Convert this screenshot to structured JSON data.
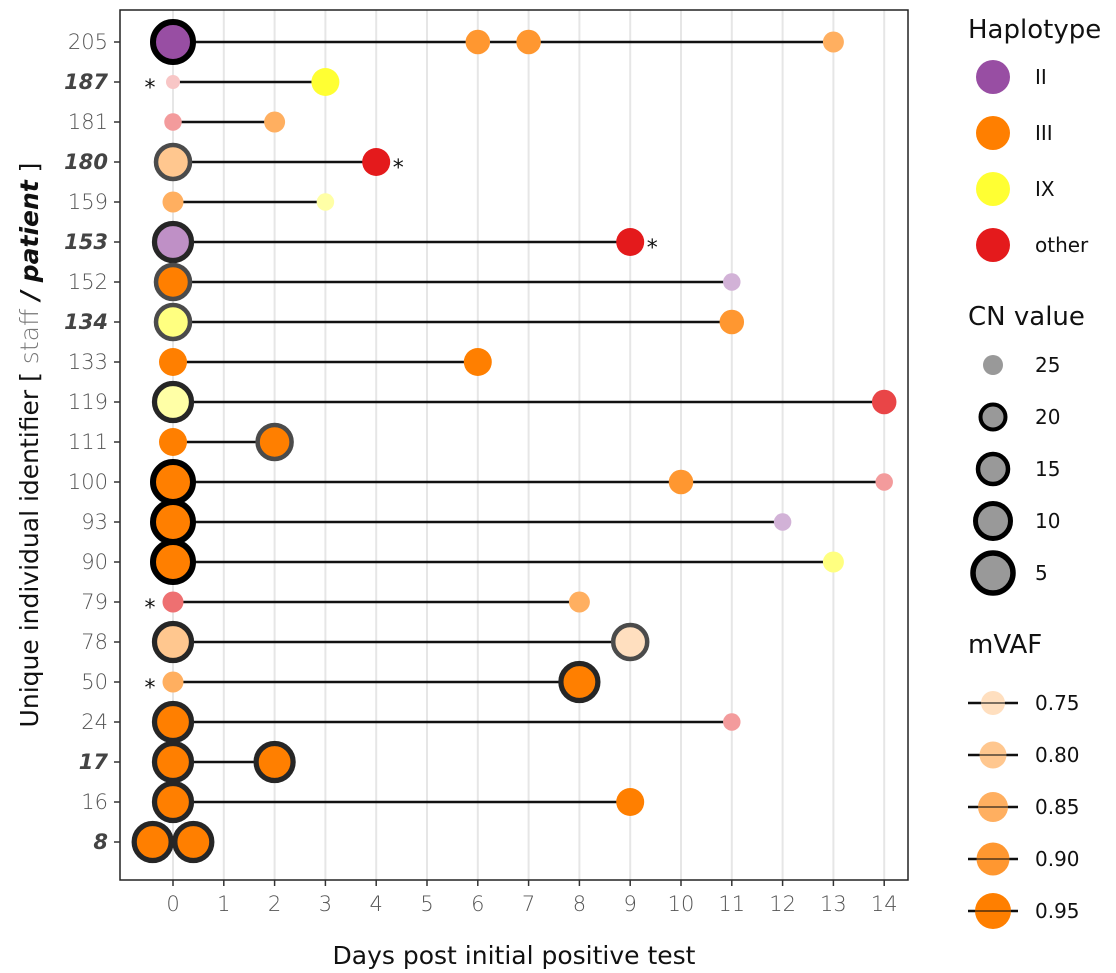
{
  "chart_data": {
    "type": "scatter",
    "xlabel": "Days post initial positive test",
    "ylabel_parts": {
      "prefix": "Unique individual identifier [ ",
      "staff": "staff",
      "slash": " / ",
      "patient": "patient",
      "suffix": " ]"
    },
    "xlim": [
      -0.8,
      14.3
    ],
    "x_ticks": [
      0,
      1,
      2,
      3,
      4,
      5,
      6,
      7,
      8,
      9,
      10,
      11,
      12,
      13,
      14
    ],
    "grid": true,
    "legend_position": "right",
    "haplotype_colors": {
      "II": "#984ea3",
      "III": "#ff7f00",
      "IX": "#ffff33",
      "other": "#e41a1c"
    },
    "individuals": [
      {
        "id": "205",
        "patient": false,
        "star": "",
        "range": [
          0,
          13
        ],
        "points": [
          {
            "x": 0,
            "hap": "II",
            "cn": 5,
            "mvaf": 0.95
          },
          {
            "x": 6,
            "hap": "III",
            "mvaf": 0.9
          },
          {
            "x": 7,
            "hap": "III",
            "mvaf": 0.9
          },
          {
            "x": 13,
            "hap": "III",
            "mvaf": 0.85
          }
        ]
      },
      {
        "id": "187",
        "patient": true,
        "star": "left",
        "range": [
          0,
          3
        ],
        "points": [
          {
            "x": 0,
            "hap": "other",
            "mvaf": 0.75
          },
          {
            "x": 3,
            "hap": "IX",
            "mvaf": 0.95
          }
        ]
      },
      {
        "id": "181",
        "patient": false,
        "star": "",
        "range": [
          0,
          2
        ],
        "points": [
          {
            "x": 0,
            "hap": "other",
            "mvaf": 0.8
          },
          {
            "x": 2,
            "hap": "III",
            "mvaf": 0.85
          }
        ]
      },
      {
        "id": "180",
        "patient": true,
        "star": "right",
        "range": [
          0,
          4
        ],
        "points": [
          {
            "x": 0,
            "hap": "III",
            "cn": 15,
            "mvaf": 0.8
          },
          {
            "x": 4,
            "hap": "other",
            "mvaf": 0.95
          }
        ]
      },
      {
        "id": "159",
        "patient": false,
        "star": "",
        "range": [
          0,
          3
        ],
        "points": [
          {
            "x": 0,
            "hap": "III",
            "mvaf": 0.85
          },
          {
            "x": 3,
            "hap": "IX",
            "mvaf": 0.8
          }
        ]
      },
      {
        "id": "153",
        "patient": true,
        "star": "right",
        "range": [
          0,
          9
        ],
        "points": [
          {
            "x": 0,
            "hap": "II",
            "cn": 10,
            "mvaf": 0.85
          },
          {
            "x": 9,
            "hap": "other",
            "mvaf": 0.95
          }
        ]
      },
      {
        "id": "152",
        "patient": false,
        "star": "",
        "range": [
          0,
          11
        ],
        "points": [
          {
            "x": 0,
            "hap": "III",
            "cn": 15,
            "mvaf": 0.95
          },
          {
            "x": 11,
            "hap": "II",
            "mvaf": 0.8
          }
        ]
      },
      {
        "id": "134",
        "patient": true,
        "star": "",
        "range": [
          0,
          11
        ],
        "points": [
          {
            "x": 0,
            "hap": "IX",
            "cn": 15,
            "mvaf": 0.85
          },
          {
            "x": 11,
            "hap": "III",
            "mvaf": 0.9
          }
        ]
      },
      {
        "id": "133",
        "patient": false,
        "star": "",
        "range": [
          0,
          6
        ],
        "points": [
          {
            "x": 0,
            "hap": "III",
            "mvaf": 0.95
          },
          {
            "x": 6,
            "hap": "III",
            "mvaf": 0.95
          }
        ]
      },
      {
        "id": "119",
        "patient": false,
        "star": "",
        "range": [
          0,
          14
        ],
        "points": [
          {
            "x": 0,
            "hap": "IX",
            "cn": 10,
            "mvaf": 0.8
          },
          {
            "x": 14,
            "hap": "other",
            "mvaf": 0.9
          }
        ]
      },
      {
        "id": "111",
        "patient": false,
        "star": "",
        "range": [
          0,
          2
        ],
        "points": [
          {
            "x": 0,
            "hap": "III",
            "mvaf": 0.95
          },
          {
            "x": 2,
            "hap": "III",
            "cn": 15,
            "mvaf": 0.95
          }
        ]
      },
      {
        "id": "100",
        "patient": false,
        "star": "",
        "range": [
          0,
          14
        ],
        "points": [
          {
            "x": 0,
            "hap": "III",
            "cn": 5,
            "mvaf": 0.95
          },
          {
            "x": 10,
            "hap": "III",
            "mvaf": 0.9
          },
          {
            "x": 14,
            "hap": "other",
            "mvaf": 0.8
          }
        ]
      },
      {
        "id": "93",
        "patient": false,
        "star": "",
        "range": [
          0,
          12
        ],
        "points": [
          {
            "x": 0,
            "hap": "III",
            "cn": 5,
            "mvaf": 0.95
          },
          {
            "x": 12,
            "hap": "II",
            "mvaf": 0.8
          }
        ]
      },
      {
        "id": "90",
        "patient": false,
        "star": "",
        "range": [
          0,
          13
        ],
        "points": [
          {
            "x": 0,
            "hap": "III",
            "cn": 5,
            "mvaf": 0.95
          },
          {
            "x": 13,
            "hap": "IX",
            "mvaf": 0.85
          }
        ]
      },
      {
        "id": "79",
        "patient": false,
        "star": "left",
        "range": [
          0,
          8
        ],
        "points": [
          {
            "x": 0,
            "hap": "other",
            "mvaf": 0.85
          },
          {
            "x": 8,
            "hap": "III",
            "mvaf": 0.85
          }
        ]
      },
      {
        "id": "78",
        "patient": false,
        "star": "",
        "range": [
          0,
          9
        ],
        "points": [
          {
            "x": 0,
            "hap": "III",
            "cn": 10,
            "mvaf": 0.8
          },
          {
            "x": 9,
            "hap": "III",
            "cn": 15,
            "mvaf": 0.75
          }
        ]
      },
      {
        "id": "50",
        "patient": false,
        "star": "left",
        "range": [
          0,
          8
        ],
        "points": [
          {
            "x": 0,
            "hap": "III",
            "mvaf": 0.85
          },
          {
            "x": 8,
            "hap": "III",
            "cn": 10,
            "mvaf": 0.95
          }
        ]
      },
      {
        "id": "24",
        "patient": false,
        "star": "",
        "range": [
          0,
          11
        ],
        "points": [
          {
            "x": 0,
            "hap": "III",
            "cn": 10,
            "mvaf": 0.95
          },
          {
            "x": 11,
            "hap": "other",
            "mvaf": 0.8
          }
        ]
      },
      {
        "id": "17",
        "patient": true,
        "star": "",
        "range": [
          0,
          2
        ],
        "points": [
          {
            "x": 0,
            "hap": "III",
            "cn": 10,
            "mvaf": 0.95
          },
          {
            "x": 2,
            "hap": "III",
            "cn": 10,
            "mvaf": 0.95
          }
        ]
      },
      {
        "id": "16",
        "patient": false,
        "star": "",
        "range": [
          0,
          9
        ],
        "points": [
          {
            "x": 0,
            "hap": "III",
            "cn": 10,
            "mvaf": 0.95
          },
          {
            "x": 9,
            "hap": "III",
            "mvaf": 0.95
          }
        ]
      },
      {
        "id": "8",
        "patient": true,
        "star": "",
        "range": [
          0,
          0
        ],
        "points": [
          {
            "x": -0.4,
            "hap": "III",
            "cn": 10,
            "mvaf": 0.95
          },
          {
            "x": 0.4,
            "hap": "III",
            "cn": 10,
            "mvaf": 0.95
          }
        ]
      }
    ],
    "legend": {
      "haplotype": {
        "title": "Haplotype",
        "items": [
          "II",
          "III",
          "IX",
          "other"
        ]
      },
      "cn": {
        "title": "CN value",
        "items": [
          "25",
          "20",
          "15",
          "10",
          "5"
        ],
        "values": [
          25,
          20,
          15,
          10,
          5
        ]
      },
      "mvaf": {
        "title": "mVAF",
        "items": [
          "0.75",
          "0.80",
          "0.85",
          "0.90",
          "0.95"
        ],
        "values": [
          0.75,
          0.8,
          0.85,
          0.9,
          0.95
        ]
      }
    }
  }
}
